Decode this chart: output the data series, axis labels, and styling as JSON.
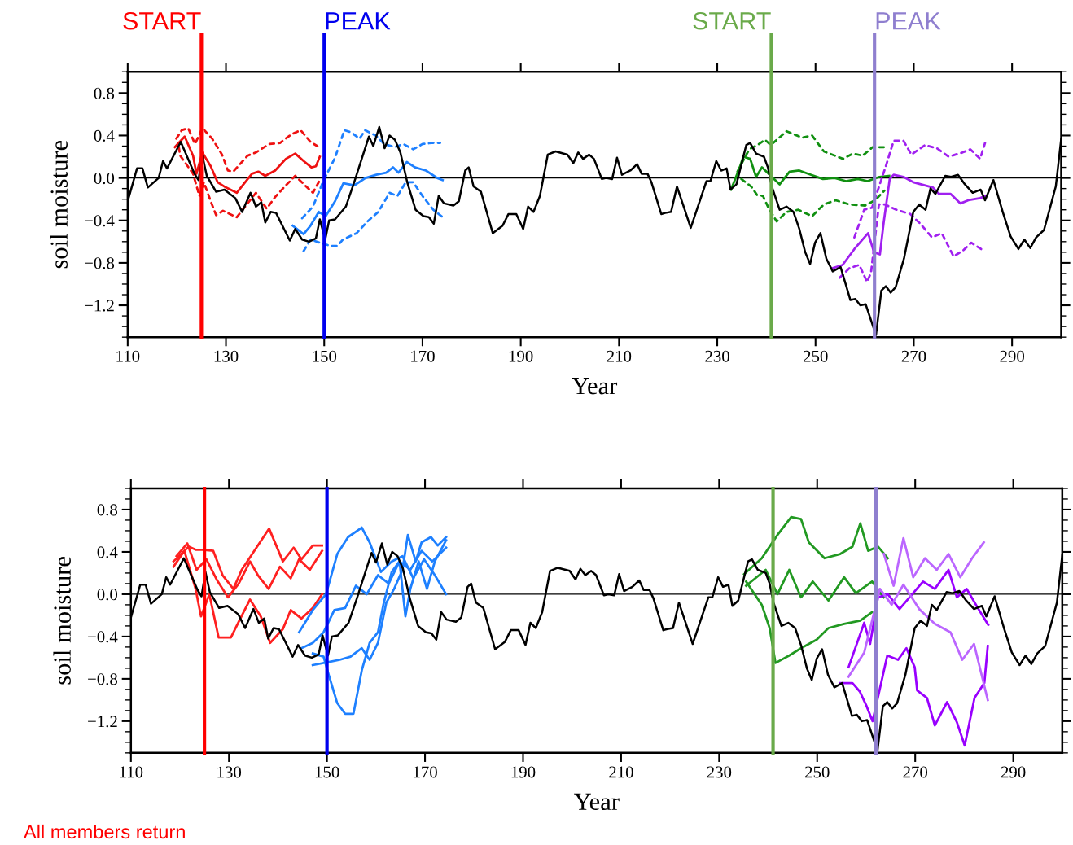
{
  "chart_data": [
    {
      "type": "line",
      "xlabel": "Year",
      "ylabel": "soil moisture",
      "xlim": [
        110,
        300
      ],
      "ylim": [
        -1.5,
        1.0
      ],
      "xticks": [
        110,
        130,
        150,
        170,
        190,
        210,
        230,
        250,
        270,
        290
      ],
      "yticks": [
        {
          "value": -1.2,
          "label": "−1.2"
        },
        {
          "value": -0.8,
          "label": "−0.8"
        },
        {
          "value": -0.4,
          "label": "−0.4"
        },
        {
          "value": 0,
          "label": "0.0"
        },
        {
          "value": 0.4,
          "label": "0.4"
        },
        {
          "value": 0.8,
          "label": "0.8"
        }
      ],
      "grid": false,
      "marker": "none",
      "ref_lines": [
        {
          "axis": "y",
          "value": 0,
          "color": "#000000"
        },
        {
          "axis": "x",
          "value": 125,
          "label": "START",
          "color": "#ff0000"
        },
        {
          "axis": "x",
          "value": 150,
          "label": "PEAK",
          "color": "#0000ee"
        },
        {
          "axis": "x",
          "value": 241,
          "label": "START",
          "color": "#6aaa4a"
        },
        {
          "axis": "x",
          "value": 262,
          "label": "PEAK",
          "color": "#8f7fcf"
        }
      ],
      "series": [
        {
          "color": "#000000",
          "line_style": "solid",
          "x": [
            110,
            111.9,
            113,
            114.1,
            116.3,
            117.2,
            118,
            120.8,
            123.6,
            124.4,
            125.2,
            126.1,
            128,
            129.7,
            131.9,
            133.3,
            135,
            136.1,
            137.2,
            138,
            139.1,
            140.2,
            143,
            144.1,
            145.5,
            146.9,
            148.3,
            149.1,
            150.2,
            151,
            152.2,
            154.4,
            156.1,
            157.7,
            159.1,
            160,
            161.2,
            162.3,
            163.3,
            164.4,
            165.5,
            166.9,
            168.6,
            170.2,
            171.3,
            172.3,
            173.3,
            174.4,
            176.3,
            177.4,
            178.7,
            179.4,
            180.4,
            181.9,
            184.3,
            186.3,
            187.5,
            189.1,
            190.5,
            191.5,
            192.6,
            193.9,
            195.5,
            197.1,
            199.5,
            200.7,
            201.7,
            202.7,
            203.9,
            204.9,
            206.5,
            207.4,
            208.6,
            209.6,
            210.6,
            212.3,
            213.7,
            214.6,
            215.8,
            216.6,
            218.6,
            219.4,
            220.6,
            221.8,
            224.6,
            227.8,
            228.6,
            229.8,
            230.8,
            231.9,
            232.7,
            233.9,
            235.9,
            236.7,
            237.9,
            239.5,
            240.3,
            241.1,
            242.7,
            244.1,
            245.5,
            246.7,
            247.9,
            248.9,
            249.9,
            251,
            252.2,
            253.5,
            255.1,
            257.1,
            258.1,
            259.1,
            260.2,
            262.3,
            263.4,
            264.3,
            265.3,
            266.3,
            268,
            269.9,
            271.1,
            272.4,
            273.4,
            274.4,
            276.4,
            277.6,
            279,
            280.4,
            282,
            283.6,
            284.5,
            286.2,
            288.1,
            289.7,
            291.3,
            292.5,
            293.7,
            294.9,
            296.5,
            298.9,
            300
          ],
          "values": [
            -0.22,
            0.09,
            0.09,
            -0.09,
            0,
            0.16,
            0.09,
            0.34,
            0.04,
            -0.02,
            0.21,
            0.02,
            -0.13,
            -0.11,
            -0.19,
            -0.32,
            -0.14,
            -0.27,
            -0.23,
            -0.42,
            -0.32,
            -0.33,
            -0.59,
            -0.48,
            -0.58,
            -0.6,
            -0.57,
            -0.39,
            -0.58,
            -0.4,
            -0.39,
            -0.27,
            -0.04,
            0.19,
            0.39,
            0.3,
            0.48,
            0.28,
            0.4,
            0.36,
            0.24,
            -0.04,
            -0.3,
            -0.36,
            -0.37,
            -0.43,
            -0.17,
            -0.24,
            -0.26,
            -0.22,
            0.07,
            0.1,
            -0.08,
            -0.13,
            -0.52,
            -0.45,
            -0.34,
            -0.34,
            -0.48,
            -0.27,
            -0.32,
            -0.17,
            0.22,
            0.25,
            0.22,
            0.14,
            0.24,
            0.18,
            0.22,
            0.18,
            -0.01,
            0,
            -0.01,
            0.19,
            0.03,
            0.07,
            0.13,
            0.04,
            0.04,
            -0.04,
            -0.34,
            -0.33,
            -0.32,
            -0.08,
            -0.47,
            -0.03,
            -0.03,
            0.16,
            0.07,
            0.09,
            -0.11,
            -0.06,
            0.31,
            0.33,
            0.23,
            0.2,
            0.1,
            -0.08,
            -0.3,
            -0.27,
            -0.32,
            -0.48,
            -0.7,
            -0.81,
            -0.61,
            -0.52,
            -0.76,
            -0.88,
            -0.84,
            -1.15,
            -1.14,
            -1.2,
            -1.19,
            -1.48,
            -1.06,
            -1.02,
            -1.08,
            -1.03,
            -0.76,
            -0.32,
            -0.25,
            -0.3,
            -0.1,
            -0.15,
            0.02,
            0.01,
            0.03,
            -0.06,
            -0.14,
            -0.11,
            -0.21,
            -0.02,
            -0.32,
            -0.55,
            -0.67,
            -0.58,
            -0.66,
            -0.56,
            -0.49,
            -0.08,
            0.37
          ]
        },
        {
          "color": "#ee1111",
          "line_style": "solid",
          "x": [
            119.6,
            121.6,
            123.3,
            124,
            125.2,
            126.9,
            128.3,
            130,
            132.2,
            133.9,
            135.3,
            136.6,
            138,
            140,
            142.2,
            144.1,
            145.8,
            147.4,
            148.3,
            149.1
          ],
          "values": [
            0.29,
            0.39,
            0.21,
            0.04,
            0.24,
            0.11,
            -0.04,
            -0.09,
            -0.14,
            -0.04,
            0.04,
            0.06,
            0.02,
            0.07,
            0.18,
            0.23,
            0.16,
            0.1,
            0.11,
            0.2
          ]
        },
        {
          "color": "#ee1111",
          "line_style": "dashed",
          "x": [
            119.9,
            121,
            122.3,
            123.7,
            125.2,
            127.2,
            129.2,
            130.4,
            131.5,
            134.4,
            136.1,
            138.8,
            141,
            143.3,
            145.2,
            147.2,
            148.6
          ],
          "values": [
            0.37,
            0.45,
            0.47,
            0.32,
            0.47,
            0.37,
            0.22,
            0.07,
            0.06,
            0.21,
            0.24,
            0.32,
            0.33,
            0.41,
            0.45,
            0.34,
            0.3
          ]
        },
        {
          "color": "#ee1111",
          "line_style": "dashed",
          "x": [
            120.4,
            120.7,
            123.3,
            124.6,
            125.5,
            126.9,
            128,
            129.4,
            130.8,
            132.2,
            133.9,
            136.1,
            138.3,
            140,
            142.2,
            144.1,
            146.1,
            147.7,
            149.1
          ],
          "values": [
            0.29,
            0.21,
            0.04,
            -0.17,
            -0.04,
            -0.22,
            -0.35,
            -0.31,
            -0.34,
            -0.37,
            -0.27,
            -0.14,
            -0.29,
            -0.18,
            -0.07,
            0.02,
            -0.07,
            -0.14,
            -0.02
          ]
        },
        {
          "color": "#1e80ff",
          "line_style": "solid",
          "x": [
            143.6,
            145.8,
            147.2,
            148.9,
            150.3,
            152.2,
            153.9,
            156.1,
            158.4,
            160.6,
            162.6,
            164,
            165.1,
            166.8,
            168.5,
            170.7,
            173,
            174.1
          ],
          "values": [
            -0.45,
            -0.53,
            -0.45,
            -0.32,
            -0.36,
            -0.22,
            -0.05,
            -0.07,
            0,
            0.03,
            0.05,
            0.1,
            0.05,
            0.15,
            0.1,
            0.07,
            0,
            -0.02
          ]
        },
        {
          "color": "#1e80ff",
          "line_style": "dashed",
          "x": [
            145.5,
            147.7,
            149.9,
            152.2,
            154.1,
            155.5,
            157.2,
            158.3,
            160.5,
            162.2,
            164.4,
            166.1,
            168.1,
            170,
            171.9,
            173.6
          ],
          "values": [
            -0.38,
            -0.27,
            -0.02,
            0.19,
            0.45,
            0.43,
            0.37,
            0.45,
            0.4,
            0.32,
            0.29,
            0.32,
            0.27,
            0.32,
            0.33,
            0.33
          ]
        },
        {
          "color": "#1e80ff",
          "line_style": "dashed",
          "x": [
            145.8,
            147.2,
            149.1,
            151.3,
            152.7,
            153.8,
            156.6,
            158.8,
            161,
            163.3,
            164.9,
            166.6,
            168.1,
            170,
            172.2,
            174.4
          ],
          "values": [
            -0.69,
            -0.58,
            -0.61,
            -0.64,
            -0.64,
            -0.58,
            -0.52,
            -0.41,
            -0.32,
            -0.14,
            -0.17,
            -0.04,
            -0.04,
            -0.17,
            -0.3,
            -0.38
          ]
        },
        {
          "color": "#119011",
          "line_style": "solid",
          "x": [
            232.8,
            234.5,
            235.3,
            236.7,
            237.9,
            239.1,
            241.1,
            242.7,
            244.7,
            246.7,
            249.1,
            251.5,
            253.9,
            256.2,
            258.6,
            260.6,
            263,
            265
          ],
          "values": [
            -0.11,
            0.09,
            0.2,
            0.18,
            0.01,
            0.1,
            0.01,
            -0.06,
            0.06,
            0.07,
            0.03,
            -0.01,
            0,
            -0.03,
            -0.01,
            -0.03,
            0.01,
            0.02
          ]
        },
        {
          "color": "#119011",
          "line_style": "dashed",
          "x": [
            234.1,
            236.5,
            238.5,
            239.7,
            240.9,
            244.1,
            247.3,
            249.3,
            251.7,
            255.6,
            257.6,
            259.6,
            261.6,
            264
          ],
          "values": [
            0.06,
            0.27,
            0.32,
            0.36,
            0.31,
            0.44,
            0.38,
            0.4,
            0.25,
            0.18,
            0.23,
            0.21,
            0.29,
            0.29
          ]
        },
        {
          "color": "#119011",
          "line_style": "dashed",
          "x": [
            234.9,
            236.9,
            238.1,
            239.3,
            240.5,
            242.1,
            244.1,
            246.5,
            249.3,
            251.7,
            254.1,
            256.9,
            260.1,
            262.1,
            264
          ],
          "values": [
            -0.01,
            -0.08,
            -0.16,
            -0.17,
            -0.29,
            -0.41,
            -0.32,
            -0.3,
            -0.36,
            -0.25,
            -0.21,
            -0.25,
            -0.26,
            -0.21,
            -0.12
          ]
        },
        {
          "color": "#a020f0",
          "line_style": "solid",
          "x": [
            253.5,
            255.5,
            257.9,
            260.7,
            261.9,
            263.1,
            263.9,
            265.1,
            265.9,
            267.9,
            269.9,
            273.9,
            275.1,
            277.5,
            279.5,
            281.1,
            283.5,
            284.5
          ],
          "values": [
            -0.85,
            -0.82,
            -0.67,
            -0.52,
            -0.7,
            -0.72,
            -0.41,
            -0.01,
            0.03,
            0.01,
            -0.04,
            -0.09,
            -0.15,
            -0.15,
            -0.24,
            -0.21,
            -0.19,
            -0.17
          ]
        },
        {
          "color": "#a020f0",
          "line_style": "dashed",
          "x": [
            257.9,
            259.9,
            261.5,
            264.3,
            265.9,
            267.9,
            269.5,
            272.3,
            274.7,
            277.1,
            279.9,
            281.5,
            283.5,
            284.5
          ],
          "values": [
            -0.56,
            -0.3,
            -0.28,
            0.11,
            0.35,
            0.35,
            0.22,
            0.31,
            0.28,
            0.2,
            0.24,
            0.27,
            0.18,
            0.33
          ]
        },
        {
          "color": "#a020f0",
          "line_style": "dashed",
          "x": [
            254.9,
            256.9,
            258.9,
            260.5,
            261.3,
            262.9,
            264.1,
            266.5,
            269.3,
            271.3,
            273.7,
            275.7,
            278.1,
            280.1,
            281.7,
            283.7
          ],
          "values": [
            -0.94,
            -0.85,
            -0.82,
            -0.98,
            -0.89,
            -0.25,
            -0.25,
            -0.3,
            -0.34,
            -0.43,
            -0.56,
            -0.52,
            -0.74,
            -0.68,
            -0.61,
            -0.67
          ]
        }
      ]
    },
    {
      "type": "line",
      "xlabel": "Year",
      "ylabel": "soil moisture",
      "xlim": [
        110,
        300
      ],
      "ylim": [
        -1.5,
        1.0
      ],
      "xticks": [
        110,
        130,
        150,
        170,
        190,
        210,
        230,
        250,
        270,
        290
      ],
      "yticks": [
        {
          "value": -1.2,
          "label": "−1.2"
        },
        {
          "value": -0.8,
          "label": "−0.8"
        },
        {
          "value": -0.4,
          "label": "−0.4"
        },
        {
          "value": 0,
          "label": "0.0"
        },
        {
          "value": 0.4,
          "label": "0.4"
        },
        {
          "value": 0.8,
          "label": "0.8"
        }
      ],
      "grid": false,
      "marker": "none",
      "annotations": [
        "All members return"
      ],
      "ref_lines": [
        {
          "axis": "y",
          "value": 0,
          "color": "#000000"
        },
        {
          "axis": "x",
          "value": 125,
          "color": "#ff0000"
        },
        {
          "axis": "x",
          "value": 150,
          "color": "#0000ee"
        },
        {
          "axis": "x",
          "value": 241,
          "color": "#6aaa4a"
        },
        {
          "axis": "x",
          "value": 262,
          "color": "#8f7fcf"
        }
      ],
      "series": [
        {
          "color": "#000000",
          "line_style": "solid",
          "x": [
            110,
            111.9,
            113,
            114.1,
            116.3,
            117.2,
            118,
            120.8,
            123.6,
            124.4,
            125.2,
            126.1,
            128,
            129.7,
            131.9,
            133.3,
            135,
            136.1,
            137.2,
            138,
            139.1,
            140.2,
            143,
            144.1,
            145.5,
            146.9,
            148.3,
            149.1,
            150.2,
            151,
            152.2,
            154.4,
            156.1,
            157.7,
            159.1,
            160,
            161.2,
            162.3,
            163.3,
            164.4,
            165.5,
            166.9,
            168.6,
            170.2,
            171.3,
            172.3,
            173.3,
            174.4,
            176.3,
            177.4,
            178.7,
            179.4,
            180.4,
            181.9,
            184.3,
            186.3,
            187.5,
            189.1,
            190.5,
            191.5,
            192.6,
            193.9,
            195.5,
            197.1,
            199.5,
            200.7,
            201.7,
            202.7,
            203.9,
            204.9,
            206.5,
            207.4,
            208.6,
            209.6,
            210.6,
            212.3,
            213.7,
            214.6,
            215.8,
            216.6,
            218.6,
            219.4,
            220.6,
            221.8,
            224.6,
            227.8,
            228.6,
            229.8,
            230.8,
            231.9,
            232.7,
            233.9,
            235.9,
            236.7,
            237.9,
            239.5,
            240.3,
            241.1,
            242.7,
            244.1,
            245.5,
            246.7,
            247.9,
            248.9,
            249.9,
            251,
            252.2,
            253.5,
            255.1,
            257.1,
            258.1,
            259.1,
            260.2,
            262.3,
            263.4,
            264.3,
            265.3,
            266.3,
            268,
            269.9,
            271.1,
            272.4,
            273.4,
            274.4,
            276.4,
            277.6,
            279,
            280.4,
            282,
            283.6,
            284.5,
            286.2,
            288.1,
            289.7,
            291.3,
            292.5,
            293.7,
            294.9,
            296.5,
            298.9,
            300
          ],
          "values": [
            -0.22,
            0.09,
            0.09,
            -0.09,
            0,
            0.16,
            0.09,
            0.34,
            0.04,
            -0.02,
            0.21,
            0.02,
            -0.13,
            -0.11,
            -0.19,
            -0.32,
            -0.14,
            -0.27,
            -0.23,
            -0.42,
            -0.32,
            -0.33,
            -0.59,
            -0.48,
            -0.58,
            -0.6,
            -0.57,
            -0.39,
            -0.58,
            -0.4,
            -0.39,
            -0.27,
            -0.04,
            0.19,
            0.39,
            0.3,
            0.48,
            0.28,
            0.4,
            0.36,
            0.24,
            -0.04,
            -0.3,
            -0.36,
            -0.37,
            -0.43,
            -0.17,
            -0.24,
            -0.26,
            -0.22,
            0.07,
            0.1,
            -0.08,
            -0.13,
            -0.52,
            -0.45,
            -0.34,
            -0.34,
            -0.48,
            -0.27,
            -0.32,
            -0.17,
            0.22,
            0.25,
            0.22,
            0.14,
            0.24,
            0.18,
            0.22,
            0.18,
            -0.01,
            0,
            -0.01,
            0.19,
            0.03,
            0.07,
            0.13,
            0.04,
            0.04,
            -0.04,
            -0.34,
            -0.33,
            -0.32,
            -0.08,
            -0.47,
            -0.03,
            -0.03,
            0.16,
            0.07,
            0.09,
            -0.11,
            -0.06,
            0.31,
            0.33,
            0.23,
            0.2,
            0.1,
            -0.08,
            -0.3,
            -0.27,
            -0.32,
            -0.48,
            -0.7,
            -0.81,
            -0.61,
            -0.52,
            -0.76,
            -0.88,
            -0.84,
            -1.15,
            -1.14,
            -1.2,
            -1.19,
            -1.48,
            -1.06,
            -1.02,
            -1.08,
            -1.03,
            -0.76,
            -0.32,
            -0.25,
            -0.3,
            -0.1,
            -0.15,
            0.02,
            0.01,
            0.03,
            -0.06,
            -0.14,
            -0.11,
            -0.21,
            -0.02,
            -0.32,
            -0.55,
            -0.67,
            -0.58,
            -0.66,
            -0.56,
            -0.49,
            -0.08,
            0.37
          ]
        },
        {
          "color": "#ff2020",
          "line_style": "solid",
          "x": [
            118.7,
            121.8,
            123.2,
            124.8,
            126.8,
            128.7,
            130.9,
            132.6,
            138.2,
            141,
            143.2,
            144.8,
            147.1,
            149
          ],
          "values": [
            0.31,
            0.45,
            0.42,
            0.42,
            0.41,
            0.18,
            0.05,
            0.23,
            0.62,
            0.31,
            0.44,
            0.33,
            0.46,
            0.46
          ]
        },
        {
          "color": "#ff2020",
          "line_style": "solid",
          "x": [
            118.7,
            120.9,
            123.2,
            124.3,
            126,
            127.9,
            130.4,
            132,
            134.3,
            136.5,
            138.4,
            141,
            142.6,
            144.8,
            147.1,
            149
          ],
          "values": [
            0.26,
            0.41,
            0.05,
            -0.21,
            0,
            -0.41,
            -0.41,
            -0.26,
            -0.05,
            -0.21,
            -0.46,
            -0.33,
            -0.15,
            -0.23,
            -0.13,
            0
          ]
        },
        {
          "color": "#ff2020",
          "line_style": "solid",
          "x": [
            119.3,
            121.5,
            123.4,
            125.4,
            127.6,
            129.8,
            132,
            134.3,
            135.9,
            138.1,
            140.4,
            142.6,
            144.3,
            146.5,
            149
          ],
          "values": [
            0.36,
            0.48,
            0.23,
            0.33,
            0.13,
            -0.03,
            0.1,
            0.31,
            0.18,
            0.05,
            0.26,
            0.15,
            0.33,
            0.23,
            0.41
          ]
        },
        {
          "color": "#1e80ff",
          "line_style": "solid",
          "x": [
            144.3,
            147.1,
            149.8,
            152.1,
            154.3,
            157.1,
            158.7,
            161,
            163.2,
            165.4,
            167.6,
            169.8,
            172,
            174.3
          ],
          "values": [
            -0.36,
            -0.15,
            0,
            0.38,
            0.54,
            0.63,
            0.49,
            0.21,
            0.31,
            0.36,
            0.15,
            0.33,
            0.18,
            0
          ]
        },
        {
          "color": "#1e80ff",
          "line_style": "solid",
          "x": [
            144.8,
            147.1,
            149.3,
            151.5,
            153.7,
            155.9,
            158.1,
            160.4,
            162.6,
            164.8,
            167,
            169.3,
            171.5,
            174.3
          ],
          "values": [
            -0.51,
            -0.46,
            -0.36,
            -0.15,
            -0.13,
            0.08,
            0,
            0.18,
            0.1,
            0.31,
            0.23,
            0.41,
            0.31,
            0.44
          ]
        },
        {
          "color": "#1e80ff",
          "line_style": "solid",
          "x": [
            147.1,
            149.3,
            150.4,
            152.1,
            153.7,
            155.4,
            157.1,
            158.7,
            160.4,
            161.5,
            163.2,
            164.8,
            166,
            167,
            168.7,
            170.4,
            172,
            174.3
          ],
          "values": [
            -0.56,
            -0.59,
            -0.77,
            -1.03,
            -1.13,
            -1.13,
            -0.72,
            -0.46,
            -0.36,
            -0.1,
            0.21,
            0.31,
            -0.21,
            0.05,
            0.31,
            0.05,
            0.31,
            0.51
          ]
        },
        {
          "color": "#1e80ff",
          "line_style": "solid",
          "x": [
            147.1,
            150.4,
            152.6,
            154.8,
            157.1,
            158.7,
            160.4,
            162.1,
            163.7,
            165.4,
            166.5,
            168.1,
            169.3,
            171.2,
            172.6,
            174.3
          ],
          "values": [
            -0.67,
            -0.64,
            -0.62,
            -0.59,
            -0.51,
            -0.62,
            -0.46,
            -0.08,
            0.05,
            0.23,
            0.56,
            0.31,
            0.49,
            0.54,
            0.46,
            0.54
          ]
        },
        {
          "color": "#229922",
          "line_style": "solid",
          "x": [
            235.1,
            238.7,
            241.9,
            244.7,
            246.7,
            248.3,
            251.5,
            254.7,
            257.2,
            258.8,
            260.4,
            262.4,
            264.4
          ],
          "values": [
            0.19,
            0.34,
            0.56,
            0.73,
            0.71,
            0.49,
            0.34,
            0.38,
            0.45,
            0.67,
            0.41,
            0.45,
            0.34
          ]
        },
        {
          "color": "#229922",
          "line_style": "solid",
          "x": [
            235.5,
            238.7,
            240.3,
            241.5,
            244.3,
            246.7,
            249.9,
            252.3,
            255.5,
            258.8,
            261.2
          ],
          "values": [
            0.12,
            -0.1,
            -0.32,
            -0.65,
            -0.58,
            -0.51,
            -0.43,
            -0.32,
            -0.28,
            -0.25,
            -0.17
          ]
        },
        {
          "color": "#229922",
          "line_style": "solid",
          "x": [
            235.5,
            239.5,
            241.9,
            244.3,
            246.7,
            249.1,
            252.3,
            255.5,
            257.9,
            261.2,
            263.6
          ],
          "values": [
            0.08,
            0.23,
            0,
            0.23,
            -0.03,
            0.12,
            -0.06,
            0.16,
            0.01,
            0.12,
            -0.03
          ]
        },
        {
          "color": "#9900ff",
          "line_style": "solid",
          "x": [
            254.7,
            257.2,
            258.7,
            260.1,
            261.3,
            263,
            264.3,
            266.5,
            268.2,
            269.9,
            270.4,
            272.4,
            274,
            276.5,
            278.5,
            280.1,
            282.1,
            284.1,
            284.8
          ],
          "values": [
            -0.84,
            -0.84,
            -0.92,
            -1.06,
            -1.2,
            -0.85,
            -0.58,
            -0.62,
            -0.51,
            -0.69,
            -0.91,
            -0.98,
            -1.24,
            -1.02,
            -1.21,
            -1.43,
            -0.98,
            -0.84,
            -0.49
          ]
        },
        {
          "color": "#9900ff",
          "line_style": "solid",
          "x": [
            256.4,
            259.6,
            260.8,
            262.4,
            264.4,
            266.8,
            271.6,
            274,
            276.8,
            278.5,
            280.5,
            282.9,
            284.9
          ],
          "values": [
            -0.69,
            -0.27,
            -0.47,
            -0.03,
            0,
            -0.14,
            0.12,
            0.05,
            0.23,
            -0.03,
            0.05,
            -0.14,
            -0.29
          ]
        },
        {
          "color": "#bb66ff",
          "line_style": "solid",
          "x": [
            263.6,
            265.6,
            267.6,
            269.6,
            272,
            274.4,
            276.8,
            279.2,
            281.6,
            284
          ],
          "values": [
            0.38,
            0.08,
            0.53,
            0.16,
            0.34,
            0.23,
            0.38,
            0.16,
            0.34,
            0.49
          ]
        },
        {
          "color": "#bb66ff",
          "line_style": "solid",
          "x": [
            256.4,
            259.6,
            262.8,
            265.2,
            267.6,
            270.8,
            274,
            277.2,
            279.6,
            282,
            284.8
          ],
          "values": [
            -0.78,
            -0.55,
            0.05,
            -0.1,
            0.09,
            -0.14,
            -0.28,
            -0.36,
            -0.62,
            -0.47,
            -1.0
          ]
        }
      ]
    }
  ]
}
